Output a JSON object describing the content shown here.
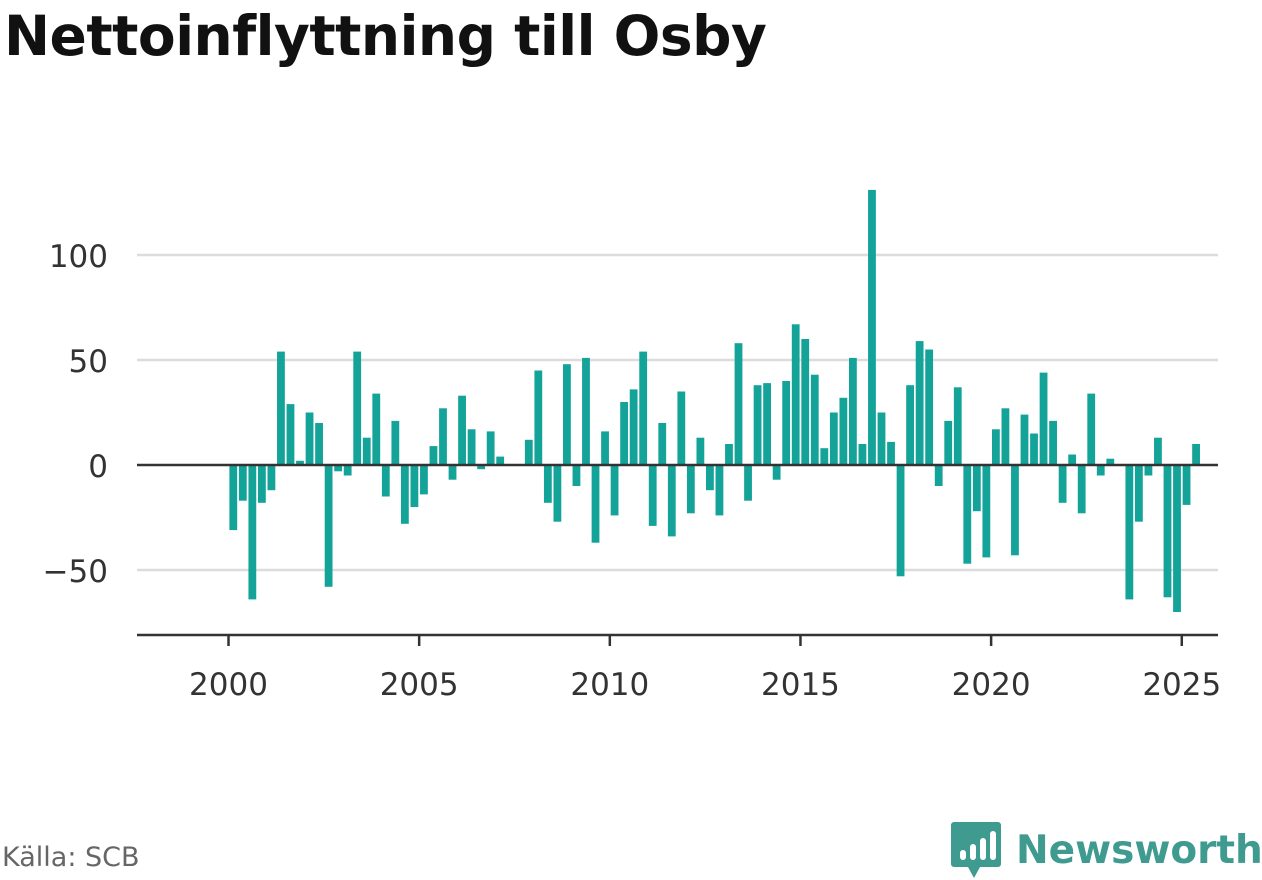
{
  "title": "Nettoinflyttning till Osby",
  "source": "Källa: SCB",
  "brand": {
    "name": "Newsworthy",
    "icon": "newsworthy-logo-icon"
  },
  "colors": {
    "bar": "#13a399",
    "grid": "#dcdcdc",
    "axis": "#333333",
    "brand": "#3f9a8f"
  },
  "chart_data": {
    "type": "bar",
    "title": "Nettoinflyttning till Osby",
    "xlabel": "",
    "ylabel": "",
    "ylim": [
      -80,
      130
    ],
    "yticks": [
      -50,
      0,
      50,
      100
    ],
    "ytick_labels": [
      "−50",
      "0",
      "50",
      "100"
    ],
    "xlim": [
      1997.6,
      2025.95
    ],
    "xticks": [
      2000,
      2005,
      2010,
      2015,
      2020,
      2025
    ],
    "xtick_labels": [
      "2000",
      "2005",
      "2010",
      "2015",
      "2020",
      "2025"
    ],
    "grid": true,
    "series": [
      {
        "values": [
          {
            "x": 2000.125,
            "y": -31
          },
          {
            "x": 2000.375,
            "y": -17
          },
          {
            "x": 2000.625,
            "y": -64
          },
          {
            "x": 2000.875,
            "y": -18
          },
          {
            "x": 2001.125,
            "y": -12
          },
          {
            "x": 2001.375,
            "y": 54
          },
          {
            "x": 2001.625,
            "y": 29
          },
          {
            "x": 2001.875,
            "y": 2
          },
          {
            "x": 2002.125,
            "y": 25
          },
          {
            "x": 2002.375,
            "y": 20
          },
          {
            "x": 2002.625,
            "y": -58
          },
          {
            "x": 2002.875,
            "y": -3
          },
          {
            "x": 2003.125,
            "y": -5
          },
          {
            "x": 2003.375,
            "y": 54
          },
          {
            "x": 2003.625,
            "y": 13
          },
          {
            "x": 2003.875,
            "y": 34
          },
          {
            "x": 2004.125,
            "y": -15
          },
          {
            "x": 2004.375,
            "y": 21
          },
          {
            "x": 2004.625,
            "y": -28
          },
          {
            "x": 2004.875,
            "y": -20
          },
          {
            "x": 2005.125,
            "y": -14
          },
          {
            "x": 2005.375,
            "y": 9
          },
          {
            "x": 2005.625,
            "y": 27
          },
          {
            "x": 2005.875,
            "y": -7
          },
          {
            "x": 2006.125,
            "y": 33
          },
          {
            "x": 2006.375,
            "y": 17
          },
          {
            "x": 2006.625,
            "y": -2
          },
          {
            "x": 2006.875,
            "y": 16
          },
          {
            "x": 2007.125,
            "y": 4
          },
          {
            "x": 2007.875,
            "y": 12
          },
          {
            "x": 2008.125,
            "y": 45
          },
          {
            "x": 2008.375,
            "y": -18
          },
          {
            "x": 2008.625,
            "y": -27
          },
          {
            "x": 2008.875,
            "y": 48
          },
          {
            "x": 2009.125,
            "y": -10
          },
          {
            "x": 2009.375,
            "y": 51
          },
          {
            "x": 2009.625,
            "y": -37
          },
          {
            "x": 2009.875,
            "y": 16
          },
          {
            "x": 2010.125,
            "y": -24
          },
          {
            "x": 2010.375,
            "y": 30
          },
          {
            "x": 2010.625,
            "y": 36
          },
          {
            "x": 2010.875,
            "y": 54
          },
          {
            "x": 2011.125,
            "y": -29
          },
          {
            "x": 2011.375,
            "y": 20
          },
          {
            "x": 2011.625,
            "y": -34
          },
          {
            "x": 2011.875,
            "y": 35
          },
          {
            "x": 2012.125,
            "y": -23
          },
          {
            "x": 2012.375,
            "y": 13
          },
          {
            "x": 2012.625,
            "y": -12
          },
          {
            "x": 2012.875,
            "y": -24
          },
          {
            "x": 2013.125,
            "y": 10
          },
          {
            "x": 2013.375,
            "y": 58
          },
          {
            "x": 2013.625,
            "y": -17
          },
          {
            "x": 2013.875,
            "y": 38
          },
          {
            "x": 2014.125,
            "y": 39
          },
          {
            "x": 2014.375,
            "y": -7
          },
          {
            "x": 2014.625,
            "y": 40
          },
          {
            "x": 2014.875,
            "y": 67
          },
          {
            "x": 2015.125,
            "y": 60
          },
          {
            "x": 2015.375,
            "y": 43
          },
          {
            "x": 2015.625,
            "y": 8
          },
          {
            "x": 2015.875,
            "y": 25
          },
          {
            "x": 2016.125,
            "y": 32
          },
          {
            "x": 2016.375,
            "y": 51
          },
          {
            "x": 2016.625,
            "y": 10
          },
          {
            "x": 2016.875,
            "y": 131
          },
          {
            "x": 2017.125,
            "y": 25
          },
          {
            "x": 2017.375,
            "y": 11
          },
          {
            "x": 2017.625,
            "y": -53
          },
          {
            "x": 2017.875,
            "y": 38
          },
          {
            "x": 2018.125,
            "y": 59
          },
          {
            "x": 2018.375,
            "y": 55
          },
          {
            "x": 2018.625,
            "y": -10
          },
          {
            "x": 2018.875,
            "y": 21
          },
          {
            "x": 2019.125,
            "y": 37
          },
          {
            "x": 2019.375,
            "y": -47
          },
          {
            "x": 2019.625,
            "y": -22
          },
          {
            "x": 2019.875,
            "y": -44
          },
          {
            "x": 2020.125,
            "y": 17
          },
          {
            "x": 2020.375,
            "y": 27
          },
          {
            "x": 2020.625,
            "y": -43
          },
          {
            "x": 2020.875,
            "y": 24
          },
          {
            "x": 2021.125,
            "y": 15
          },
          {
            "x": 2021.375,
            "y": 44
          },
          {
            "x": 2021.625,
            "y": 21
          },
          {
            "x": 2021.875,
            "y": -18
          },
          {
            "x": 2022.125,
            "y": 5
          },
          {
            "x": 2022.375,
            "y": -23
          },
          {
            "x": 2022.625,
            "y": 34
          },
          {
            "x": 2022.875,
            "y": -5
          },
          {
            "x": 2023.125,
            "y": 3
          },
          {
            "x": 2023.625,
            "y": -64
          },
          {
            "x": 2023.875,
            "y": -27
          },
          {
            "x": 2024.125,
            "y": -5
          },
          {
            "x": 2024.375,
            "y": 13
          },
          {
            "x": 2024.625,
            "y": -63
          },
          {
            "x": 2024.875,
            "y": -70
          },
          {
            "x": 2025.125,
            "y": -19
          },
          {
            "x": 2025.375,
            "y": 10
          }
        ]
      }
    ]
  }
}
